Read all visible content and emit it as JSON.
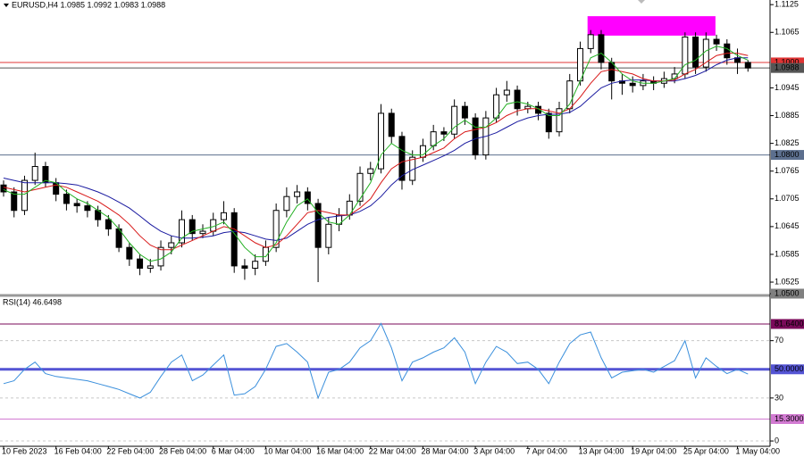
{
  "chart_data": [
    {
      "type": "candlestick",
      "title": "EURUSD,H4 1.0985 1.0992 1.0983 1.0988",
      "categories": [
        "10 Feb 2023",
        null,
        null,
        null,
        null,
        "16 Feb 04:00",
        null,
        null,
        null,
        null,
        "22 Feb 04:00",
        null,
        null,
        null,
        null,
        "28 Feb 04:00",
        null,
        null,
        null,
        null,
        "6 Mar 04:00",
        null,
        null,
        null,
        null,
        "10 Mar 04:00",
        null,
        null,
        null,
        null,
        "16 Mar 04:00",
        null,
        null,
        null,
        null,
        "22 Mar 04:00",
        null,
        null,
        null,
        null,
        "28 Mar 04:00",
        null,
        null,
        null,
        null,
        "3 Apr 04:00",
        null,
        null,
        null,
        null,
        "7 Apr 04:00",
        null,
        null,
        null,
        null,
        "13 Apr 04:00",
        null,
        null,
        null,
        null,
        "19 Apr 04:00",
        null,
        null,
        null,
        null,
        "25 Apr 04:00",
        null,
        null,
        null,
        null,
        "1 May 04:00",
        null
      ],
      "open": [
        1.0735,
        1.072,
        1.068,
        1.0745,
        1.0775,
        1.074,
        1.0715,
        1.0695,
        1.069,
        1.068,
        1.066,
        1.064,
        1.06,
        1.0575,
        1.0555,
        1.056,
        1.06,
        1.061,
        1.066,
        1.063,
        1.0635,
        1.066,
        1.0675,
        1.056,
        1.0555,
        1.057,
        1.06,
        1.068,
        1.071,
        1.072,
        1.0695,
        1.06,
        1.065,
        1.067,
        1.07,
        1.076,
        1.077,
        1.089,
        1.084,
        1.0745,
        1.0795,
        1.082,
        1.085,
        1.0845,
        1.0905,
        1.088,
        1.08,
        1.088,
        1.093,
        1.094,
        1.09,
        1.0905,
        1.089,
        1.085,
        1.09,
        1.096,
        1.103,
        1.106,
        1.1,
        1.096,
        1.0955,
        1.095,
        1.096,
        1.0955,
        1.0965,
        1.0975,
        1.1055,
        1.099,
        1.105,
        1.104,
        1.101,
        1.1
      ],
      "high": [
        1.0745,
        1.073,
        1.0755,
        1.0805,
        1.0785,
        1.075,
        1.0725,
        1.0705,
        1.07,
        1.069,
        1.067,
        1.065,
        1.061,
        1.0585,
        1.0575,
        1.0615,
        1.0625,
        1.068,
        1.067,
        1.065,
        1.0675,
        1.07,
        1.0685,
        1.0575,
        1.0585,
        1.0615,
        1.0695,
        1.073,
        1.0735,
        1.073,
        1.0705,
        1.0665,
        1.0685,
        1.0715,
        1.0775,
        1.0785,
        1.091,
        1.09,
        1.085,
        1.081,
        1.0835,
        1.0865,
        1.086,
        1.092,
        1.0915,
        1.089,
        1.0895,
        1.0945,
        1.096,
        1.095,
        1.0915,
        1.0915,
        1.09,
        1.0915,
        1.0975,
        1.1045,
        1.107,
        1.107,
        1.101,
        1.0975,
        1.097,
        1.0975,
        1.097,
        1.098,
        1.099,
        1.1065,
        1.1065,
        1.1065,
        1.106,
        1.105,
        1.103,
        1.1005
      ],
      "low": [
        1.071,
        1.0665,
        1.067,
        1.0735,
        1.073,
        1.07,
        1.068,
        1.0675,
        1.0665,
        1.0645,
        1.0625,
        1.059,
        1.056,
        1.054,
        1.0545,
        1.055,
        1.0585,
        1.06,
        1.0615,
        1.062,
        1.0625,
        1.065,
        1.0545,
        1.053,
        1.054,
        1.056,
        1.059,
        1.0665,
        1.0695,
        1.068,
        1.0525,
        1.0585,
        1.0635,
        1.066,
        1.069,
        1.0745,
        1.076,
        1.0825,
        1.0725,
        1.0735,
        1.0785,
        1.081,
        1.083,
        1.0835,
        1.0865,
        1.079,
        1.079,
        1.087,
        1.0915,
        1.0885,
        1.089,
        1.0875,
        1.0835,
        1.084,
        1.089,
        1.095,
        1.102,
        1.0985,
        1.092,
        1.093,
        1.0935,
        1.094,
        1.094,
        1.0945,
        1.0955,
        1.0965,
        1.0975,
        1.098,
        1.1025,
        1.0995,
        1.0975,
        1.098
      ],
      "close": [
        1.072,
        1.068,
        1.0745,
        1.0775,
        1.074,
        1.0715,
        1.0695,
        1.069,
        1.068,
        1.066,
        1.064,
        1.06,
        1.0575,
        1.0555,
        1.056,
        1.06,
        1.061,
        1.066,
        1.063,
        1.0635,
        1.066,
        1.0675,
        1.056,
        1.0555,
        1.057,
        1.06,
        1.068,
        1.071,
        1.072,
        1.0695,
        1.06,
        1.065,
        1.067,
        1.07,
        1.076,
        1.077,
        1.089,
        1.084,
        1.0745,
        1.0795,
        1.082,
        1.085,
        1.0845,
        1.0905,
        1.088,
        1.08,
        1.088,
        1.093,
        1.094,
        1.09,
        1.0905,
        1.089,
        1.085,
        1.09,
        1.096,
        1.103,
        1.106,
        1.1,
        1.096,
        1.0955,
        1.095,
        1.096,
        1.0955,
        1.0965,
        1.0975,
        1.1055,
        1.099,
        1.105,
        1.104,
        1.101,
        1.1,
        1.0988
      ],
      "series": [
        {
          "color": "#1a1aa0",
          "values": [
            1.075,
            1.0745,
            1.074,
            1.074,
            1.074,
            1.074,
            1.0738,
            1.0735,
            1.0728,
            1.072,
            1.071,
            1.0698,
            1.0685,
            1.0668,
            1.065,
            1.0635,
            1.0625,
            1.062,
            1.062,
            1.0622,
            1.0625,
            1.0632,
            1.0635,
            1.0632,
            1.0625,
            1.0618,
            1.0615,
            1.062,
            1.0635,
            1.065,
            1.066,
            1.0665,
            1.0668,
            1.067,
            1.0678,
            1.069,
            1.071,
            1.0735,
            1.0755,
            1.0768,
            1.0778,
            1.0788,
            1.0798,
            1.081,
            1.0825,
            1.0835,
            1.084,
            1.0848,
            1.086,
            1.0872,
            1.088,
            1.0885,
            1.0888,
            1.0888,
            1.0892,
            1.0905,
            1.0925,
            1.0945,
            1.0955,
            1.096,
            1.0962,
            1.0962,
            1.096,
            1.096,
            1.096,
            1.0965,
            1.0972,
            1.0982,
            1.0995,
            1.1005,
            1.101,
            1.101
          ]
        },
        {
          "color": "#d81818",
          "values": [
            1.073,
            1.0725,
            1.072,
            1.0725,
            1.073,
            1.0735,
            1.073,
            1.072,
            1.071,
            1.07,
            1.0685,
            1.067,
            1.065,
            1.0625,
            1.0605,
            1.0595,
            1.0595,
            1.0605,
            1.0615,
            1.0625,
            1.0635,
            1.0645,
            1.064,
            1.0625,
            1.061,
            1.06,
            1.0605,
            1.0625,
            1.065,
            1.0675,
            1.068,
            1.0675,
            1.067,
            1.067,
            1.0685,
            1.0705,
            1.074,
            1.077,
            1.0785,
            1.079,
            1.0795,
            1.0805,
            1.0815,
            1.0835,
            1.085,
            1.0855,
            1.086,
            1.087,
            1.0885,
            1.0895,
            1.09,
            1.09,
            1.0895,
            1.089,
            1.09,
            1.0925,
            1.0955,
            1.098,
            1.0985,
            1.098,
            1.0975,
            1.0965,
            1.096,
            1.096,
            1.0962,
            1.0975,
            1.0985,
            1.1,
            1.1015,
            1.102,
            1.102,
            1.1015
          ]
        },
        {
          "color": "#22b022",
          "values": [
            1.0725,
            1.0715,
            1.0715,
            1.073,
            1.0745,
            1.074,
            1.072,
            1.0705,
            1.0695,
            1.068,
            1.0665,
            1.064,
            1.061,
            1.0585,
            1.057,
            1.0575,
            1.059,
            1.062,
            1.0635,
            1.064,
            1.0645,
            1.0655,
            1.063,
            1.06,
            1.058,
            1.058,
            1.061,
            1.0655,
            1.069,
            1.0705,
            1.0675,
            1.0655,
            1.065,
            1.067,
            1.0705,
            1.074,
            1.08,
            1.0825,
            1.081,
            1.08,
            1.08,
            1.082,
            1.0835,
            1.086,
            1.0875,
            1.086,
            1.086,
            1.088,
            1.091,
            1.0915,
            1.091,
            1.09,
            1.0885,
            1.0885,
            1.091,
            1.096,
            1.101,
            1.102,
            1.1,
            1.0975,
            1.096,
            1.0955,
            1.0955,
            1.096,
            1.0965,
            1.0995,
            1.1005,
            1.1025,
            1.1035,
            1.103,
            1.1015,
            1.1005
          ]
        }
      ],
      "zone": {
        "from": 55.7,
        "to": 67.9,
        "high": 1.11,
        "low": 1.1058,
        "color": "#ff00ff"
      },
      "levels": [
        {
          "value": 1.1,
          "label": "1.1000",
          "color": "#e03434"
        },
        {
          "value": 1.08,
          "label": "1.0800",
          "color": "#5c6f8e"
        },
        {
          "value": 1.0988,
          "label": "1.0988",
          "color": "#555555"
        }
      ],
      "ylim": [
        1.05,
        1.1135
      ],
      "yticks": [
        {
          "value": 1.05,
          "label": "1.0500"
        },
        1.0525,
        1.0585,
        1.0645,
        1.0705,
        1.0765,
        1.0825,
        1.0885,
        1.0945,
        1.1065,
        1.1125
      ]
    },
    {
      "type": "line",
      "title": "RSI(14) 46.6498",
      "color": "#3a8fdc",
      "values": [
        40,
        42,
        50,
        55,
        47,
        45,
        44,
        43,
        42,
        40,
        38,
        36,
        33,
        30,
        34,
        45,
        55,
        60,
        42,
        46,
        53,
        60,
        32,
        33,
        38,
        50,
        66,
        68,
        62,
        55,
        30,
        48,
        50,
        55,
        65,
        70,
        82,
        65,
        42,
        55,
        58,
        62,
        65,
        72,
        62,
        40,
        55,
        66,
        62,
        54,
        55,
        50,
        40,
        55,
        68,
        74,
        76,
        58,
        44,
        48,
        49,
        50,
        48,
        52,
        56,
        70,
        44,
        58,
        52,
        47,
        50,
        46.6498
      ],
      "levels": [
        {
          "value": 81.64,
          "label": "81.6400",
          "color": "#7a0a5a"
        },
        {
          "value": 50,
          "label": "50.0000",
          "color": "#5454d4"
        },
        {
          "value": 15.3,
          "label": "15.3000",
          "color": "#d27ad2"
        }
      ],
      "ylim": [
        -3.7,
        100.3
      ],
      "yticks": [
        0,
        30,
        70
      ]
    }
  ]
}
